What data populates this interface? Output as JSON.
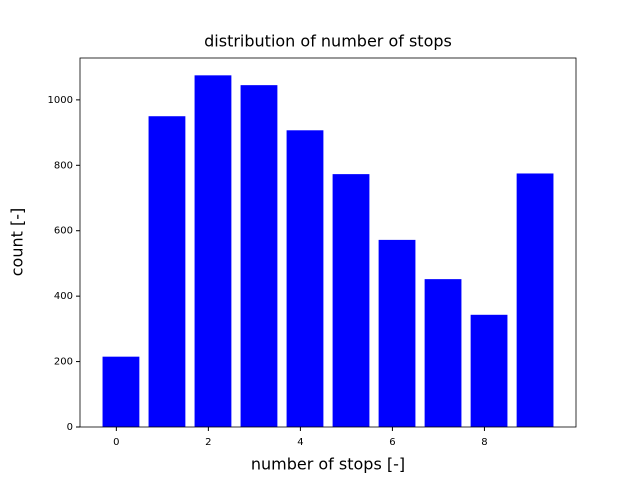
{
  "chart_data": {
    "type": "bar",
    "title": "distribution of number of stops",
    "xlabel": "number of stops [-]",
    "ylabel": "count [-]",
    "x": [
      0,
      1,
      2,
      3,
      4,
      5,
      6,
      7,
      8,
      9
    ],
    "values": [
      215,
      950,
      1075,
      1045,
      907,
      773,
      572,
      452,
      343,
      775
    ],
    "color": "#0000ff",
    "xlim": [
      -0.79,
      9.99
    ],
    "xticks": [
      0,
      2,
      4,
      6,
      8
    ],
    "ylim": [
      0,
      1128
    ],
    "yticks": [
      0,
      200,
      400,
      600,
      800,
      1000
    ]
  }
}
